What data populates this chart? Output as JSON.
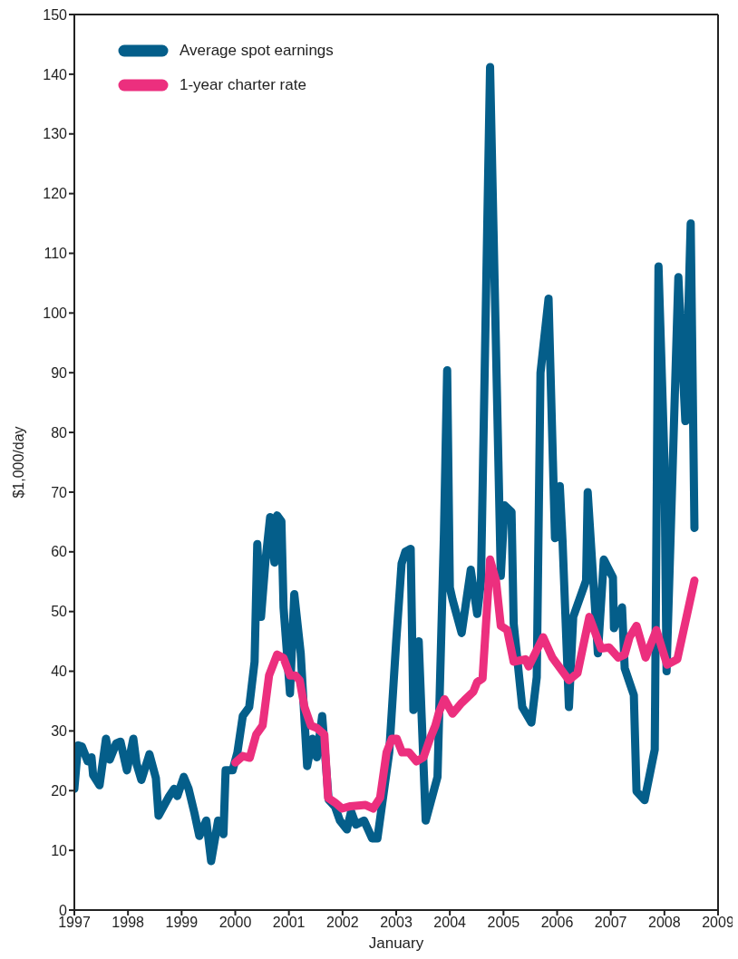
{
  "chart_data": {
    "type": "line",
    "xlabel": "January",
    "ylabel": "$1,000/day",
    "xlim": [
      1997,
      2009
    ],
    "xticks": [
      1997,
      1998,
      1999,
      2000,
      2001,
      2002,
      2003,
      2004,
      2005,
      2006,
      2007,
      2008,
      2009
    ],
    "ylim": [
      0,
      150
    ],
    "yticks": [
      0,
      10,
      20,
      30,
      40,
      50,
      60,
      70,
      80,
      90,
      100,
      110,
      120,
      130,
      140,
      150
    ],
    "legend": "top left",
    "marker": "none",
    "line_style": "solid",
    "series": [
      {
        "name": "Average spot earnings",
        "color": "#045e8a",
        "x": [
          1997.0,
          1997.07,
          1997.14,
          1997.25,
          1997.32,
          1997.35,
          1997.47,
          1997.59,
          1997.66,
          1997.78,
          1997.86,
          1997.98,
          1998.1,
          1998.16,
          1998.25,
          1998.4,
          1998.52,
          1998.57,
          1998.77,
          1998.86,
          1998.92,
          1999.04,
          1999.13,
          1999.24,
          1999.33,
          1999.46,
          1999.55,
          1999.68,
          1999.78,
          1999.82,
          1999.95,
          2000.04,
          2000.14,
          2000.26,
          2000.36,
          2000.41,
          2000.48,
          2000.56,
          2000.65,
          2000.73,
          2000.78,
          2000.86,
          2000.9,
          2001.02,
          2001.1,
          2001.22,
          2001.34,
          2001.44,
          2001.52,
          2001.62,
          2001.74,
          2001.86,
          2001.95,
          2002.08,
          2002.16,
          2002.25,
          2002.4,
          2002.55,
          2002.65,
          2002.87,
          2003.0,
          2003.1,
          2003.17,
          2003.27,
          2003.32,
          2003.42,
          2003.55,
          2003.77,
          2003.89,
          2003.95,
          2004.0,
          2004.05,
          2004.22,
          2004.39,
          2004.51,
          2004.58,
          2004.75,
          2004.95,
          2005.02,
          2005.15,
          2005.19,
          2005.35,
          2005.52,
          2005.62,
          2005.69,
          2005.84,
          2005.96,
          2006.05,
          2006.1,
          2006.22,
          2006.3,
          2006.54,
          2006.57,
          2006.76,
          2006.87,
          2007.04,
          2007.06,
          2007.21,
          2007.26,
          2007.43,
          2007.48,
          2007.63,
          2007.82,
          2007.89,
          2008.0,
          2008.04,
          2008.26,
          2008.39,
          2008.49,
          2008.56
        ],
        "values": [
          20.3,
          27.6,
          27.4,
          24.9,
          25.6,
          22.6,
          20.9,
          28.7,
          25.2,
          27.9,
          28.2,
          23.4,
          28.7,
          24.5,
          21.8,
          26.1,
          22.1,
          15.8,
          19.1,
          20.3,
          19.1,
          22.3,
          20.3,
          16.2,
          12.4,
          15,
          8.2,
          15,
          12.7,
          23.4,
          23.4,
          26.4,
          32.5,
          34,
          41.6,
          61.3,
          49.1,
          58.2,
          65.8,
          58.2,
          66.1,
          65.1,
          50.7,
          36.3,
          52.9,
          43,
          24.1,
          28.7,
          25.6,
          32.5,
          18.5,
          17.3,
          15,
          13.5,
          16.5,
          14.3,
          15,
          12,
          12,
          26.4,
          45,
          58,
          60,
          60.5,
          33.5,
          45,
          15,
          22.3,
          63,
          90.4,
          54,
          52,
          46.4,
          57,
          49.6,
          55,
          141.2,
          56,
          67.8,
          66.7,
          48,
          34,
          31.4,
          39,
          90,
          102.4,
          62.3,
          71,
          62,
          34,
          49.1,
          55.2,
          70,
          43,
          58.7,
          55.7,
          47.2,
          50.7,
          40.5,
          36,
          19.9,
          18.4,
          26.9,
          107.8,
          75.4,
          40,
          106,
          81.9,
          115,
          64
        ]
      },
      {
        "name": "1-year charter rate",
        "color": "#ec2f7e",
        "x": [
          2000.0,
          2000.14,
          2000.27,
          2000.39,
          2000.51,
          2000.63,
          2000.78,
          2000.9,
          2001.02,
          2001.12,
          2001.2,
          2001.29,
          2001.41,
          2001.52,
          2001.66,
          2001.73,
          2001.86,
          2001.99,
          2002.15,
          2002.43,
          2002.57,
          2002.7,
          2002.82,
          2002.92,
          2003.01,
          2003.11,
          2003.24,
          2003.38,
          2003.51,
          2003.63,
          2003.73,
          2003.8,
          2003.9,
          2004.05,
          2004.22,
          2004.44,
          2004.51,
          2004.61,
          2004.75,
          2004.86,
          2004.95,
          2005.07,
          2005.19,
          2005.41,
          2005.47,
          2005.74,
          2005.91,
          2006.22,
          2006.38,
          2006.6,
          2006.82,
          2006.97,
          2007.14,
          2007.26,
          2007.35,
          2007.48,
          2007.65,
          2007.85,
          2008.05,
          2008.24,
          2008.56
        ],
        "values": [
          24.7,
          25.8,
          25.5,
          29.4,
          30.9,
          39.3,
          42.8,
          42.2,
          39.3,
          39.3,
          38.5,
          34,
          30.9,
          30.5,
          29.4,
          18.8,
          18,
          17,
          17.4,
          17.6,
          17,
          18.8,
          26.4,
          28.7,
          28.7,
          26.4,
          26.4,
          24.9,
          25.6,
          28.7,
          30.9,
          33.2,
          35.3,
          32.9,
          34.7,
          36.6,
          38.2,
          38.8,
          58.7,
          55.2,
          47.6,
          46.9,
          41.6,
          42,
          40.8,
          45.7,
          42.3,
          38.5,
          39.7,
          49.1,
          43.8,
          44,
          42.3,
          42.8,
          45.7,
          47.6,
          42.3,
          46.9,
          41.1,
          42,
          55.2
        ]
      }
    ]
  }
}
